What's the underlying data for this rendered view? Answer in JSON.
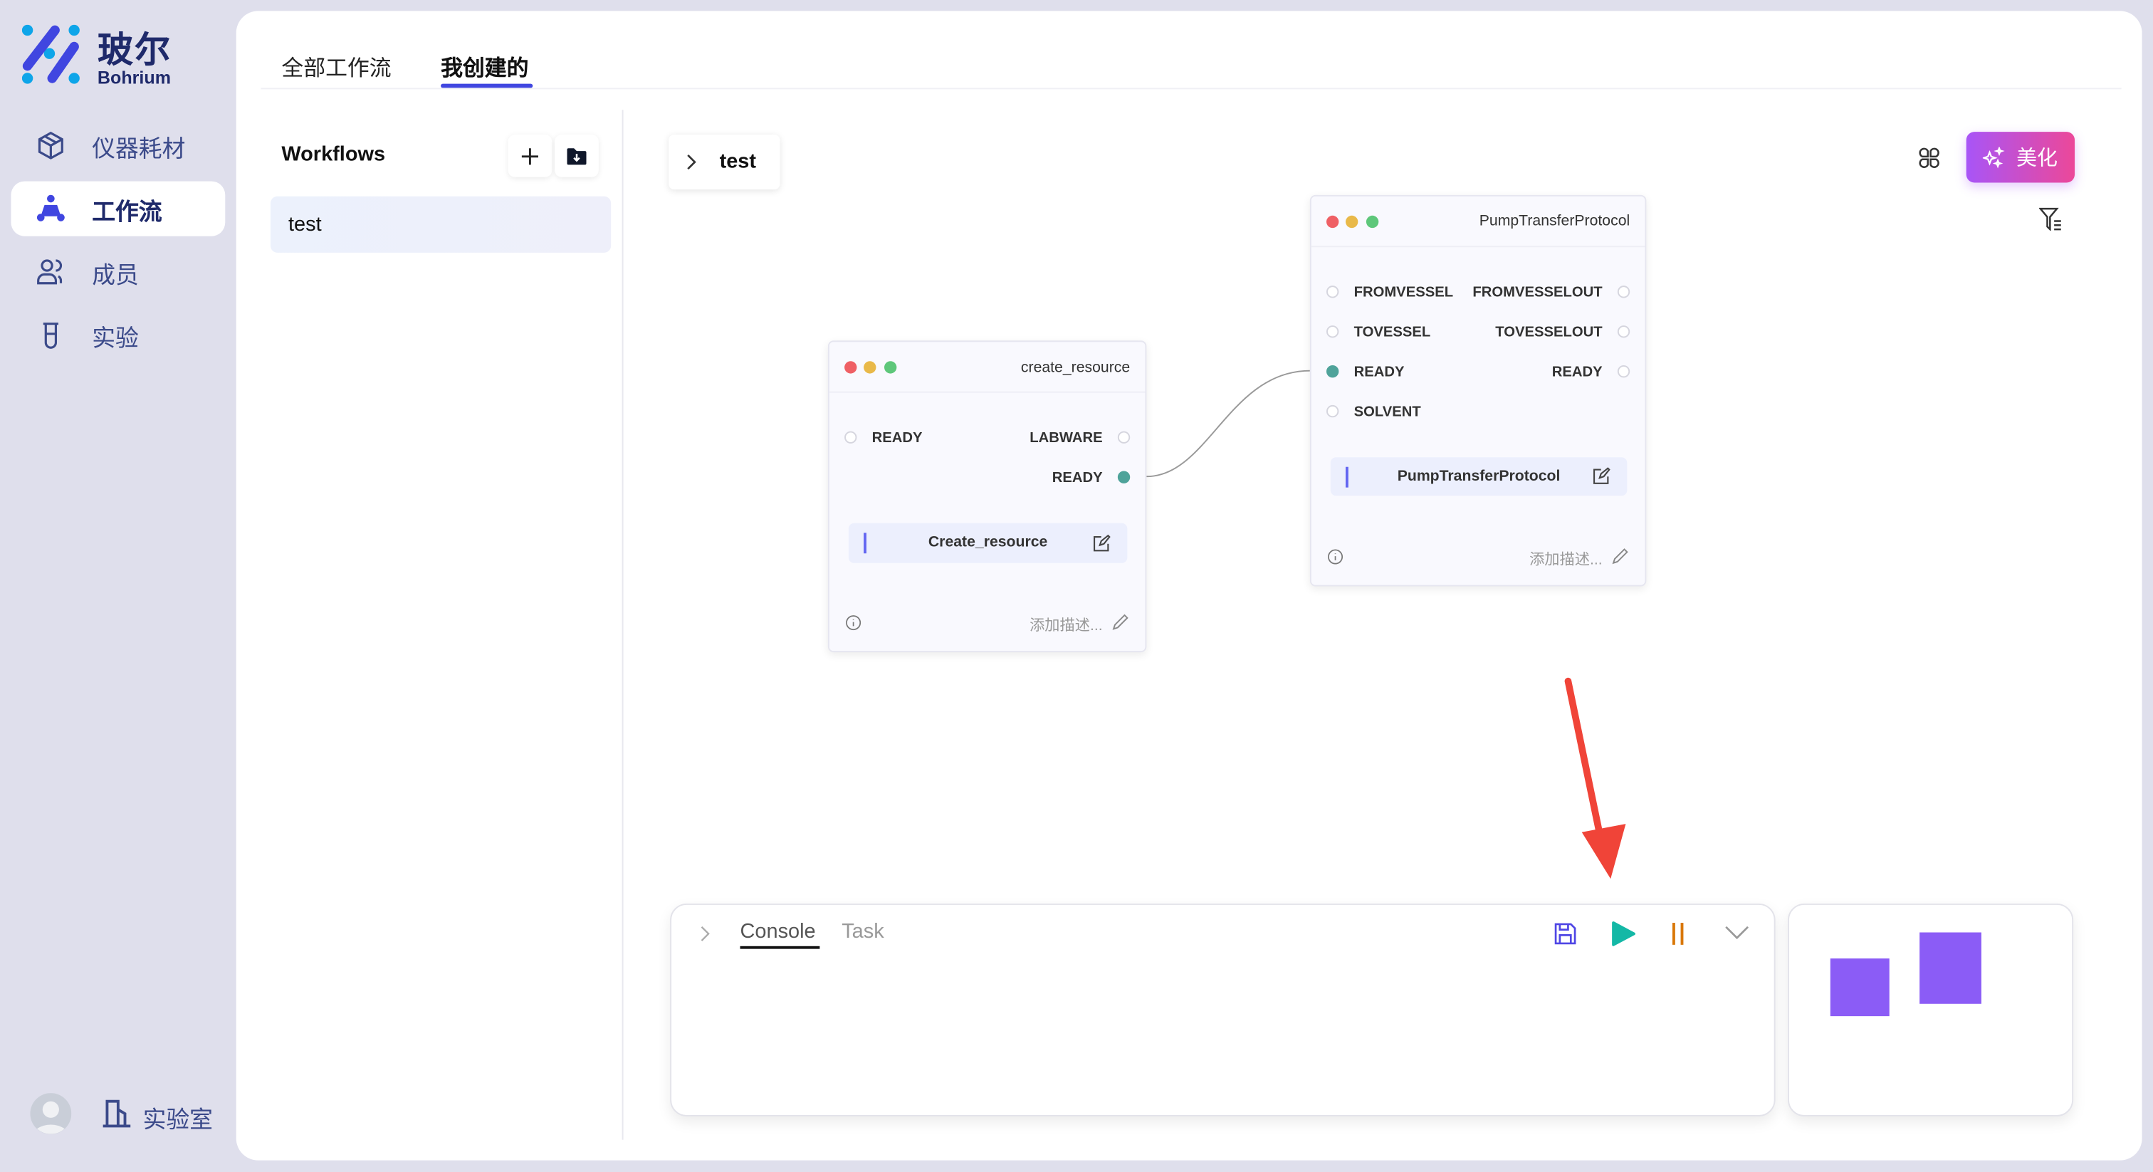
{
  "brand": {
    "name_cn": "玻尔",
    "name_en": "Bohrium"
  },
  "sidebar": {
    "items": [
      {
        "label": "仪器耗材",
        "icon": "box-icon",
        "active": false
      },
      {
        "label": "工作流",
        "icon": "workflow-icon",
        "active": true
      },
      {
        "label": "成员",
        "icon": "users-icon",
        "active": false
      },
      {
        "label": "实验",
        "icon": "beaker-icon",
        "active": false
      }
    ],
    "footer": {
      "lab_label": "实验室"
    }
  },
  "tabs": [
    {
      "label": "全部工作流",
      "active": false
    },
    {
      "label": "我创建的",
      "active": true
    }
  ],
  "workflows": {
    "title": "Workflows",
    "items": [
      {
        "label": "test",
        "selected": true
      }
    ]
  },
  "canvas": {
    "breadcrumb": "test",
    "beautify_label": "美化",
    "nodes": [
      {
        "title": "create_resource",
        "inputs": [
          {
            "label": "READY",
            "connected": false
          }
        ],
        "outputs": [
          {
            "label": "LABWARE",
            "connected": false
          },
          {
            "label": "READY",
            "connected": true
          }
        ],
        "function": "Create_resource",
        "description_placeholder": "添加描述..."
      },
      {
        "title": "PumpTransferProtocol",
        "inputs": [
          {
            "label": "FROMVESSEL",
            "connected": false
          },
          {
            "label": "TOVESSEL",
            "connected": false
          },
          {
            "label": "READY",
            "connected": true
          },
          {
            "label": "SOLVENT",
            "connected": false
          }
        ],
        "outputs": [
          {
            "label": "FROMVESSELOUT",
            "connected": false
          },
          {
            "label": "TOVESSELOUT",
            "connected": false
          },
          {
            "label": "READY",
            "connected": false
          }
        ],
        "function": "PumpTransferProtocol",
        "description_placeholder": "添加描述..."
      }
    ],
    "edges": [
      {
        "from": "create_resource.READY",
        "to": "PumpTransferProtocol.READY"
      }
    ]
  },
  "console": {
    "tabs": [
      {
        "label": "Console",
        "active": true
      },
      {
        "label": "Task",
        "active": false
      }
    ]
  },
  "colors": {
    "accent": "#4046e0",
    "port_connected": "#4fa39a",
    "play": "#14b8a6",
    "pause": "#d97706",
    "minimap": "#8b5cf6",
    "annotation_arrow": "#f04438"
  }
}
